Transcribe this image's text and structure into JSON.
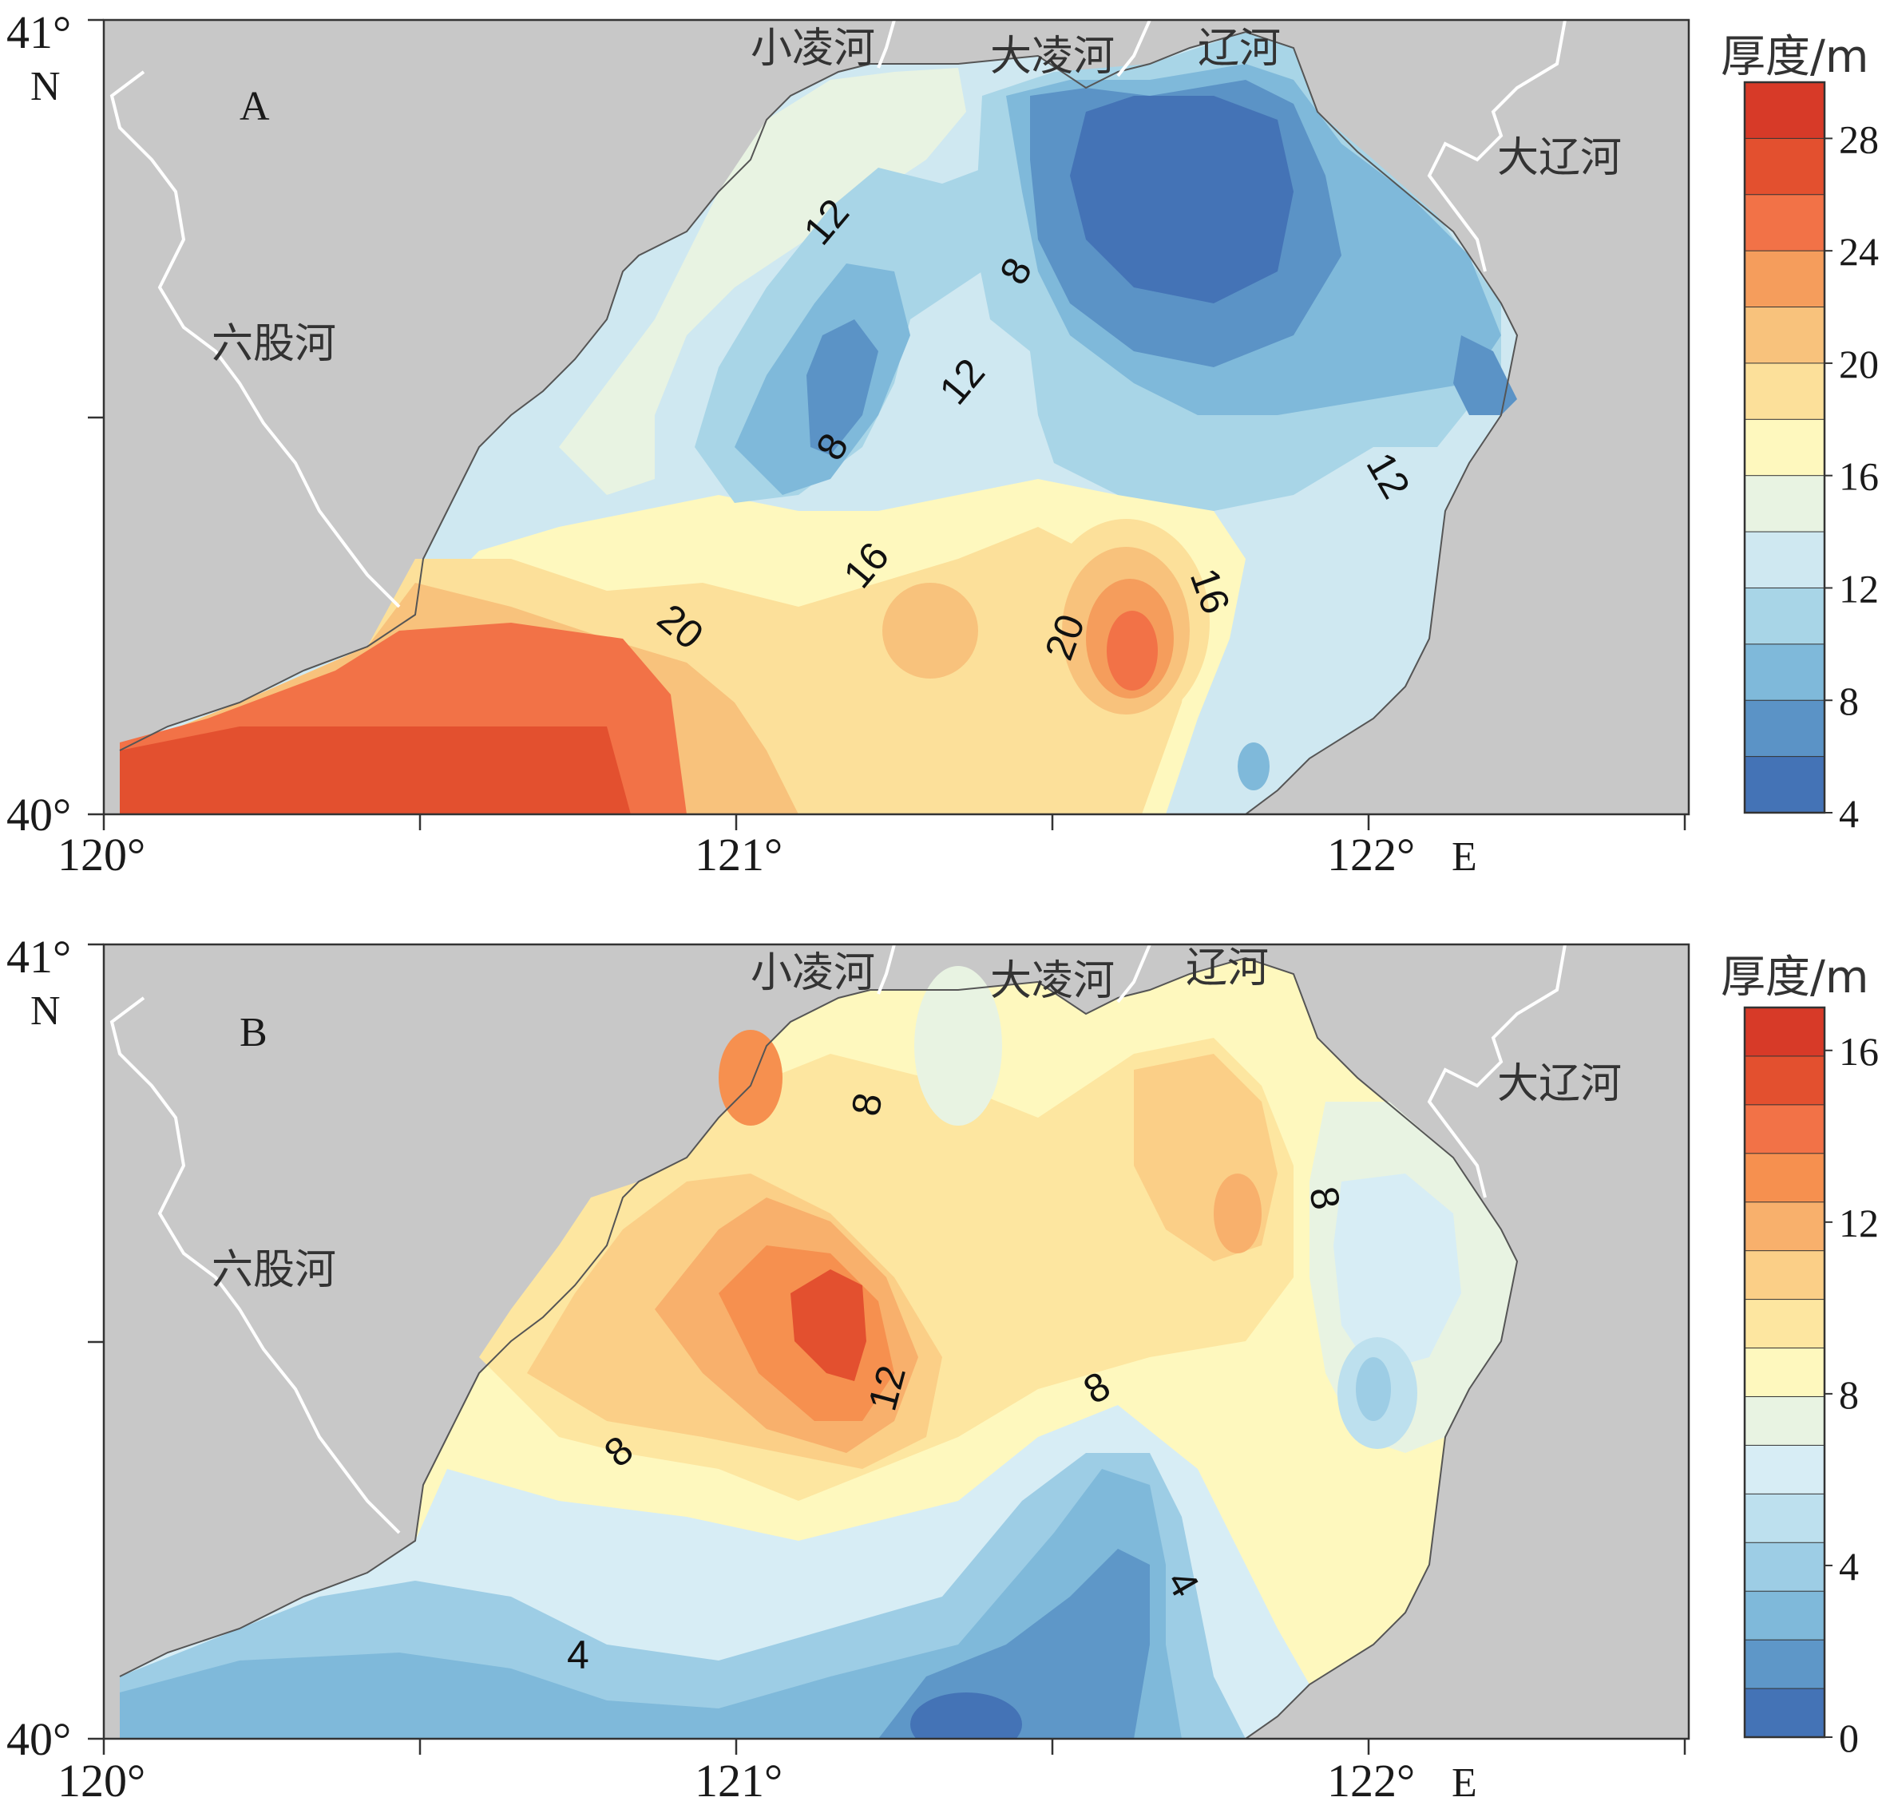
{
  "panels": [
    {
      "id": "A",
      "label": "A",
      "legend": {
        "title": "厚度/m",
        "ticks": [
          "28",
          "24",
          "20",
          "16",
          "12",
          "8",
          "4"
        ],
        "range": [
          4,
          30
        ],
        "colors": [
          "#d73a28",
          "#e3502f",
          "#f27247",
          "#f59d5c",
          "#f8c27c",
          "#fce09a",
          "#fef8be",
          "#e8f3e2",
          "#cfe8f1",
          "#a8d5e7",
          "#7fb9da",
          "#5b93c6",
          "#4473b6"
        ]
      },
      "river_labels": [
        "小凌河",
        "大凌河",
        "辽河",
        "大辽河",
        "六股河"
      ],
      "contour_labels": [
        "12",
        "8",
        "12",
        "8",
        "20",
        "16",
        "20",
        "16",
        "12"
      ]
    },
    {
      "id": "B",
      "label": "B",
      "legend": {
        "title": "厚度/m",
        "ticks": [
          "16",
          "12",
          "8",
          "4",
          "0"
        ],
        "range": [
          0,
          17
        ],
        "colors": [
          "#d73a28",
          "#e3502f",
          "#f27247",
          "#f6904f",
          "#f8b06c",
          "#fbcf87",
          "#fde6a0",
          "#fef8be",
          "#e8f3e2",
          "#d7edf5",
          "#bde0ee",
          "#9dcde5",
          "#7fb9da",
          "#5e97c8",
          "#4473b6"
        ]
      },
      "river_labels": [
        "小凌河",
        "大凌河",
        "辽河",
        "大辽河",
        "六股河"
      ],
      "contour_labels": [
        "8",
        "8",
        "12",
        "8",
        "8",
        "4",
        "4"
      ]
    }
  ],
  "axes": {
    "x_ticks": [
      "120°",
      "121°",
      "122°"
    ],
    "x_unit": "E",
    "y_ticks": [
      "41°",
      "40°"
    ],
    "y_unit": "N"
  },
  "land_color": "#c8c8c8",
  "river_color": "#ffffff"
}
